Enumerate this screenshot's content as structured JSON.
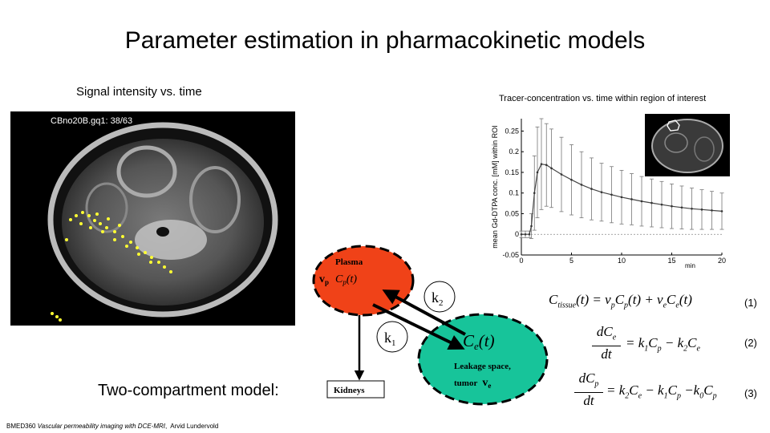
{
  "slide": {
    "title": "Parameter estimation in pharmacokinetic models",
    "signal_label": "Signal intensity vs. time",
    "tracer_label": "Tracer-concentration vs. time within region of interest",
    "two_compartment_label": "Two-compartment model:",
    "footer": {
      "course": "BMED360",
      "title": "Vascular permeability imaging with DCE-MRI",
      "author": "Arvid Lundervold"
    }
  },
  "mri": {
    "caption": "CBno20B.gq1: 38/63"
  },
  "model": {
    "plasma_label": "Plasma",
    "plasma_vp": "v",
    "plasma_vp_sub": "p",
    "plasma_cp": "C",
    "plasma_cp_sub": "p",
    "plasma_cp_arg": "(t)",
    "leak_ce": "C",
    "leak_ce_sub": "e",
    "leak_ce_arg": "(t)",
    "leak_line1": "Leakage space,",
    "leak_line2": "tumor",
    "leak_ve": "v",
    "leak_ve_sub": "e",
    "k1": "k",
    "k1_sub": "1",
    "k2": "k",
    "k2_sub": "2",
    "kidneys": "Kidneys",
    "colors": {
      "plasma": "#f04218",
      "leak": "#17c49a"
    }
  },
  "equations": [
    {
      "number": "(1)"
    },
    {
      "number": "(2)"
    },
    {
      "number": "(3)"
    }
  ],
  "chart_data": {
    "type": "line",
    "ylabel": "mean Gd-DTPA conc. [mM] within ROI",
    "xlabel": "min",
    "xlim": [
      0,
      20
    ],
    "ylim": [
      -0.05,
      0.28
    ],
    "x_ticks": [
      "0",
      "5",
      "10",
      "15",
      "20"
    ],
    "y_ticks": [
      "-0.05",
      "0",
      "0.05",
      "0.1",
      "0.15",
      "0.2",
      "0.25"
    ],
    "series": [
      {
        "name": "mean concentration",
        "x": [
          0,
          0.4,
          0.8,
          1.0,
          1.3,
          1.6,
          2.0,
          2.5,
          3,
          4,
          5,
          6,
          7,
          8,
          9,
          10,
          11,
          12,
          13,
          14,
          15,
          16,
          17,
          18,
          19,
          20
        ],
        "values": [
          0.0,
          0.0,
          0.0,
          0.02,
          0.1,
          0.15,
          0.17,
          0.168,
          0.16,
          0.145,
          0.132,
          0.12,
          0.11,
          0.102,
          0.096,
          0.09,
          0.085,
          0.08,
          0.076,
          0.072,
          0.068,
          0.065,
          0.062,
          0.06,
          0.058,
          0.056
        ],
        "err": [
          0.008,
          0.008,
          0.008,
          0.03,
          0.09,
          0.11,
          0.11,
          0.1,
          0.095,
          0.09,
          0.085,
          0.08,
          0.075,
          0.07,
          0.068,
          0.065,
          0.062,
          0.06,
          0.058,
          0.056,
          0.054,
          0.052,
          0.05,
          0.048,
          0.046,
          0.044
        ]
      }
    ]
  }
}
